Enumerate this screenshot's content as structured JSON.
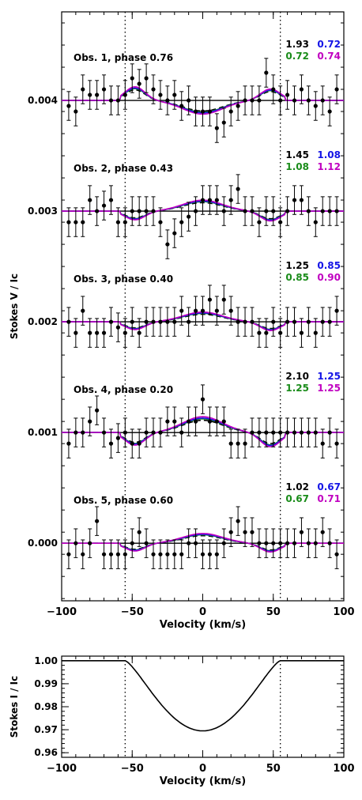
{
  "chart_data": [
    {
      "type": "scatter",
      "xlabel": "Velocity (km/s)",
      "ylabel": "Stokes V / Ic",
      "xlim": [
        -100,
        100
      ],
      "ylim": [
        -0.00052,
        0.0048
      ],
      "x_ticks": [
        -100,
        -50,
        0,
        50,
        100
      ],
      "x_tick_labels": [
        "−100",
        "−50",
        "0",
        "50",
        "100"
      ],
      "y_ticks": [
        0.0,
        0.001,
        0.002,
        0.003,
        0.004
      ],
      "y_tick_labels": [
        "0.000",
        "0.001",
        "0.002",
        "0.003",
        "0.004"
      ],
      "vertical_dotted_lines": [
        -55,
        55
      ],
      "colors": {
        "observed": "#000000",
        "model_black": "#000000",
        "model_green": "#1a8c1a",
        "model_blue": "#1414e6",
        "model_magenta": "#c000c0"
      },
      "x": [
        -95,
        -90,
        -85,
        -80,
        -75,
        -70,
        -65,
        -60,
        -55,
        -50,
        -45,
        -40,
        -35,
        -30,
        -25,
        -20,
        -15,
        -10,
        -5,
        0,
        5,
        10,
        15,
        20,
        25,
        30,
        35,
        40,
        45,
        50,
        55,
        60,
        65,
        70,
        75,
        80,
        85,
        90,
        95
      ],
      "observations": [
        {
          "label": "Obs. 1, phase 0.76",
          "offset": 0.004,
          "chi2": [
            "1.93",
            "0.72",
            "0.72",
            "0.74"
          ],
          "amplitude": 0.000125,
          "values": [
            0.00395,
            0.0039,
            0.0041,
            0.00405,
            0.00405,
            0.0041,
            0.004,
            0.004,
            0.00405,
            0.0042,
            0.00415,
            0.0042,
            0.0041,
            0.00405,
            0.004,
            0.00405,
            0.00395,
            0.004,
            0.0039,
            0.0039,
            0.0039,
            0.00375,
            0.0038,
            0.0039,
            0.00395,
            0.004,
            0.004,
            0.004,
            0.00425,
            0.0041,
            0.004,
            0.00405,
            0.004,
            0.0041,
            0.004,
            0.00395,
            0.004,
            0.0039,
            0.0041
          ],
          "errors": [
            0.00013,
            0.00013,
            0.00013,
            0.00013,
            0.00013,
            0.00013,
            0.00013,
            0.00013,
            0.00013,
            0.00013,
            0.00013,
            0.00013,
            0.00013,
            0.00013,
            0.00013,
            0.00013,
            0.00013,
            0.00013,
            0.00013,
            0.00013,
            0.00013,
            0.00013,
            0.00013,
            0.00013,
            0.00013,
            0.00013,
            0.00013,
            0.00013,
            0.00013,
            0.00013,
            0.00013,
            0.00013,
            0.00013,
            0.00013,
            0.00013,
            0.00013,
            0.00013,
            0.00013,
            0.00013
          ]
        },
        {
          "label": "Obs. 2, phase 0.43",
          "offset": 0.003,
          "chi2": [
            "1.45",
            "1.08",
            "1.08",
            "1.12"
          ],
          "amplitude": -9e-05,
          "values": [
            0.0029,
            0.0029,
            0.0029,
            0.0031,
            0.003,
            0.00305,
            0.0031,
            0.0029,
            0.0029,
            0.003,
            0.003,
            0.003,
            0.003,
            0.0029,
            0.0027,
            0.0028,
            0.0029,
            0.00295,
            0.003,
            0.0031,
            0.0031,
            0.0031,
            0.003,
            0.0031,
            0.0032,
            0.003,
            0.003,
            0.0029,
            0.003,
            0.003,
            0.0029,
            0.003,
            0.0031,
            0.0031,
            0.003,
            0.0029,
            0.003,
            0.003,
            0.003
          ],
          "errors": [
            0.00013,
            0.00013,
            0.00013,
            0.00013,
            0.00013,
            0.00013,
            0.00013,
            0.00013,
            0.00013,
            0.00013,
            0.00013,
            0.00013,
            0.00013,
            0.00013,
            0.00013,
            0.00013,
            0.00013,
            0.00013,
            0.00013,
            0.00013,
            0.00013,
            0.00013,
            0.00013,
            0.00013,
            0.00013,
            0.00013,
            0.00013,
            0.00013,
            0.00013,
            0.00013,
            0.00013,
            0.00013,
            0.00013,
            0.00013,
            0.00013,
            0.00013,
            0.00013,
            0.00013,
            0.00013
          ]
        },
        {
          "label": "Obs. 3, phase 0.40",
          "offset": 0.002,
          "chi2": [
            "1.25",
            "0.85",
            "0.85",
            "0.90"
          ],
          "amplitude": -8e-05,
          "values": [
            0.002,
            0.0019,
            0.0021,
            0.0019,
            0.0019,
            0.0019,
            0.002,
            0.00195,
            0.0019,
            0.002,
            0.0019,
            0.002,
            0.002,
            0.002,
            0.002,
            0.002,
            0.0021,
            0.002,
            0.0021,
            0.0021,
            0.0022,
            0.0021,
            0.0022,
            0.0021,
            0.002,
            0.002,
            0.002,
            0.0019,
            0.0019,
            0.002,
            0.0019,
            0.002,
            0.002,
            0.0019,
            0.002,
            0.0019,
            0.002,
            0.002,
            0.0021
          ],
          "errors": [
            0.00013,
            0.00013,
            0.00013,
            0.00013,
            0.00013,
            0.00013,
            0.00013,
            0.00013,
            0.00013,
            0.00013,
            0.00013,
            0.00013,
            0.00013,
            0.00013,
            0.00013,
            0.00013,
            0.00013,
            0.00013,
            0.00013,
            0.00013,
            0.00013,
            0.00013,
            0.00013,
            0.00013,
            0.00013,
            0.00013,
            0.00013,
            0.00013,
            0.00013,
            0.00013,
            0.00013,
            0.00013,
            0.00013,
            0.00013,
            0.00013,
            0.00013,
            0.00013,
            0.00013,
            0.00013
          ]
        },
        {
          "label": "Obs. 4, phase 0.20",
          "offset": 0.001,
          "chi2": [
            "2.10",
            "1.25",
            "1.25",
            "1.25"
          ],
          "amplitude": -0.00013,
          "values": [
            0.0009,
            0.001,
            0.001,
            0.0011,
            0.0012,
            0.001,
            0.0009,
            0.00095,
            0.001,
            0.0009,
            0.0009,
            0.001,
            0.001,
            0.001,
            0.0011,
            0.0011,
            0.001,
            0.0011,
            0.0011,
            0.0013,
            0.0011,
            0.0011,
            0.0011,
            0.0009,
            0.0009,
            0.0009,
            0.001,
            0.001,
            0.001,
            0.001,
            0.001,
            0.001,
            0.001,
            0.001,
            0.001,
            0.001,
            0.0009,
            0.001,
            0.0009
          ],
          "errors": [
            0.00013,
            0.00013,
            0.00013,
            0.00013,
            0.00013,
            0.00013,
            0.00013,
            0.00013,
            0.00013,
            0.00013,
            0.00013,
            0.00013,
            0.00013,
            0.00013,
            0.00013,
            0.00013,
            0.00013,
            0.00013,
            0.00013,
            0.00013,
            0.00013,
            0.00013,
            0.00013,
            0.00013,
            0.00013,
            0.00013,
            0.00013,
            0.00013,
            0.00013,
            0.00013,
            0.00013,
            0.00013,
            0.00013,
            0.00013,
            0.00013,
            0.00013,
            0.00013,
            0.00013,
            0.00013
          ]
        },
        {
          "label": "Obs. 5, phase 0.60",
          "offset": 0.0,
          "chi2": [
            "1.02",
            "0.67",
            "0.67",
            "0.71"
          ],
          "amplitude": -8e-05,
          "values": [
            -0.0001,
            0.0,
            -0.0001,
            0.0,
            0.0002,
            -0.0001,
            -0.0001,
            -0.0001,
            -0.0001,
            0.0,
            0.0001,
            0.0,
            -0.0001,
            -0.0001,
            -0.0001,
            -0.0001,
            -0.0001,
            0.0,
            0.0,
            -0.0001,
            -0.0001,
            -0.0001,
            0.0,
            0.0001,
            0.0002,
            0.0001,
            0.0001,
            0.0,
            0.0,
            0.0,
            0.0,
            0.0,
            0.0,
            0.0001,
            0.0,
            0.0,
            0.0001,
            0.0,
            -0.0001
          ],
          "errors": [
            0.00013,
            0.00013,
            0.00013,
            0.00013,
            0.00013,
            0.00013,
            0.00013,
            0.00013,
            0.00013,
            0.00013,
            0.00013,
            0.00013,
            0.00013,
            0.00013,
            0.00013,
            0.00013,
            0.00013,
            0.00013,
            0.00013,
            0.00013,
            0.00013,
            0.00013,
            0.00013,
            0.00013,
            0.00013,
            0.00013,
            0.00013,
            0.00013,
            0.00013,
            0.00013,
            0.00013,
            0.00013,
            0.00013,
            0.00013,
            0.00013,
            0.00013,
            0.00013,
            0.00013,
            0.00013
          ]
        }
      ]
    },
    {
      "type": "line",
      "xlabel": "Velocity (km/s)",
      "ylabel": "Stokes I / Ic",
      "xlim": [
        -100,
        100
      ],
      "ylim": [
        0.958,
        1.002
      ],
      "x_ticks": [
        -100,
        -50,
        0,
        50,
        100
      ],
      "x_tick_labels": [
        "−100",
        "−50",
        "0",
        "50",
        "100"
      ],
      "y_ticks": [
        0.96,
        0.97,
        0.98,
        0.99,
        1.0
      ],
      "y_tick_labels": [
        "0.96",
        "0.97",
        "0.98",
        "0.99",
        "1.00"
      ],
      "vertical_dotted_lines": [
        -55,
        55
      ],
      "profile_depth": 0.0305,
      "profile_halfwidth": 55
    }
  ]
}
